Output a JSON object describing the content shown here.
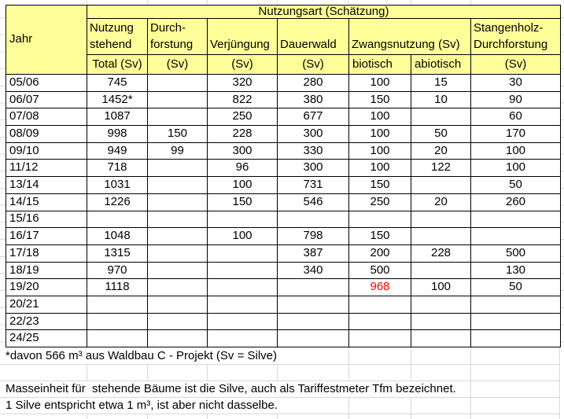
{
  "colors": {
    "header_fill": "#ffff99",
    "border": "#000000",
    "grid": "#d8d8d8",
    "red": "#ff0000"
  },
  "table": {
    "title": "Nutzungsart (Schätzung)",
    "jahr_label": "Jahr",
    "groups": [
      {
        "lines": [
          "Nutzung",
          "stehend"
        ],
        "sub": "Total (Sv)"
      },
      {
        "lines": [
          "Durch-",
          "forstung"
        ],
        "sub": "(Sv)"
      },
      {
        "lines": [
          "Verjüngung"
        ],
        "sub": "(Sv)"
      },
      {
        "lines": [
          "Dauerwald"
        ],
        "sub": "(Sv)"
      },
      {
        "label": "Zwangsnutzung (Sv)",
        "subs": [
          "biotisch",
          "abiotisch"
        ]
      },
      {
        "lines": [
          "Stangenholz-",
          "Durchforstung"
        ],
        "sub": "(Sv)"
      }
    ],
    "rows": [
      {
        "jahr": "05/06",
        "cells": [
          "745",
          "",
          "320",
          "280",
          "100",
          "15",
          "30"
        ]
      },
      {
        "jahr": "06/07",
        "cells": [
          "1452*",
          "",
          "822",
          "380",
          "150",
          "10",
          "90"
        ]
      },
      {
        "jahr": "07/08",
        "cells": [
          "1087",
          "",
          "250",
          "677",
          "100",
          "",
          "60"
        ]
      },
      {
        "jahr": "08/09",
        "cells": [
          "998",
          "150",
          "228",
          "300",
          "100",
          "50",
          "170"
        ]
      },
      {
        "jahr": "09/10",
        "cells": [
          "949",
          "99",
          "300",
          "330",
          "100",
          "20",
          "100"
        ]
      },
      {
        "jahr": "11/12",
        "cells": [
          "718",
          "",
          "96",
          "300",
          "100",
          "122",
          "100"
        ]
      },
      {
        "jahr": "13/14",
        "cells": [
          "1031",
          "",
          "100",
          "731",
          "150",
          "",
          "50"
        ]
      },
      {
        "jahr": "14/15",
        "cells": [
          "1226",
          "",
          "150",
          "546",
          "250",
          "20",
          "260"
        ]
      },
      {
        "jahr": "15/16",
        "cells": [
          "",
          "",
          "",
          "",
          "",
          "",
          ""
        ]
      },
      {
        "jahr": "16/17",
        "cells": [
          "1048",
          "",
          "100",
          "798",
          "150",
          "",
          ""
        ]
      },
      {
        "jahr": "17/18",
        "cells": [
          "1315",
          "",
          "",
          "387",
          "200",
          "228",
          "500"
        ]
      },
      {
        "jahr": "18/19",
        "cells": [
          "970",
          "",
          "",
          "340",
          "500",
          "",
          "130"
        ]
      },
      {
        "jahr": "19/20",
        "cells": [
          "1118",
          "",
          "",
          "",
          {
            "t": "968",
            "color": "red"
          },
          "100",
          "50"
        ]
      },
      {
        "jahr": "20/21",
        "cells": [
          "",
          "",
          "",
          "",
          "",
          "",
          ""
        ]
      },
      {
        "jahr": "22/23",
        "cells": [
          "",
          "",
          "",
          "",
          "",
          "",
          ""
        ]
      },
      {
        "jahr": "24/25",
        "cells": [
          "",
          "",
          "",
          "",
          "",
          "",
          ""
        ]
      }
    ]
  },
  "notes": {
    "footnote": "*davon 566 m³ aus Waldbau C - Projekt (Sv = Silve)",
    "line1": "Masseinheit für  stehende Bäume ist die Silve, auch als Tariffestmeter Tfm bezeichnet.",
    "line2": "1 Silve entspricht etwa 1 m³, ist aber nicht dasselbe."
  }
}
